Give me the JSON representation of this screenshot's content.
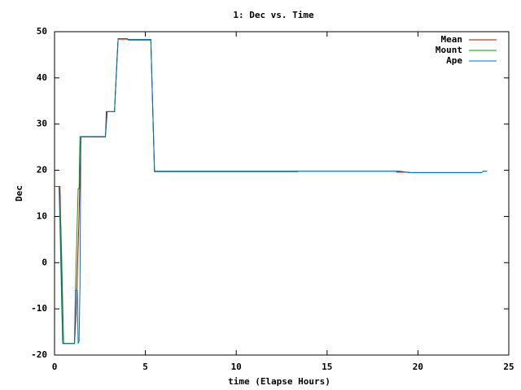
{
  "chart_data": {
    "type": "line",
    "title": "1: Dec vs. Time",
    "x_label": "time (Elapse Hours)",
    "y_label": "Dec",
    "xlim": [
      0,
      25
    ],
    "ylim": [
      -20,
      50
    ],
    "xticks": [
      0,
      5,
      10,
      15,
      20,
      25
    ],
    "yticks": [
      -20,
      -10,
      0,
      10,
      20,
      30,
      40,
      50
    ],
    "grid": false,
    "legend": "top-right",
    "series": [
      {
        "name": "Mean",
        "color": "#cc0000",
        "x": [
          0,
          0.3,
          0.35,
          0.45,
          1.1,
          1.2,
          1.35,
          1.45,
          2.8,
          2.85,
          3.3,
          3.5,
          4.0,
          4.05,
          5.3,
          5.5,
          13.4,
          16,
          18.8,
          19.5
        ],
        "values": [
          16.5,
          16.5,
          5,
          -17.5,
          -17.5,
          -10,
          10,
          27.2,
          27.2,
          32.7,
          32.7,
          48.4,
          48.4,
          48.2,
          48.2,
          19.7,
          19.7,
          null,
          19.6,
          19.6
        ]
      },
      {
        "name": "Mount",
        "color": "#00a000",
        "x": [
          0,
          0.25,
          0.3,
          0.35,
          0.4,
          0.45,
          0.5,
          1.1,
          1.15,
          1.3,
          1.35,
          1.4,
          2.8,
          2.85,
          2.9,
          3.3,
          3.35,
          3.45,
          3.5,
          4.0,
          4.05,
          5.3,
          5.35,
          5.45,
          5.5,
          13.4,
          19,
          19.5,
          23.5,
          23.6,
          23.8
        ],
        "values": [
          16.5,
          16.5,
          11,
          8,
          0,
          -9,
          -17.5,
          -17.5,
          -6,
          16,
          16,
          27.3,
          27.3,
          30,
          32.7,
          32.7,
          37,
          45,
          48.5,
          48.5,
          48.3,
          48.3,
          41,
          27,
          19.8,
          19.8,
          19.8,
          19.5,
          19.5,
          19.8,
          19.8
        ]
      },
      {
        "name": "Ape",
        "color": "#0070c0",
        "x": [
          0,
          0.25,
          0.3,
          0.4,
          0.45,
          1.1,
          1.15,
          1.25,
          1.3,
          1.35,
          1.4,
          1.45,
          2.8,
          2.85,
          2.9,
          3.3,
          3.35,
          3.45,
          3.5,
          4.0,
          4.05,
          5.3,
          5.35,
          5.45,
          5.5,
          13.4,
          19,
          19.5,
          23.5,
          23.6,
          23.8
        ],
        "values": [
          16.5,
          16.5,
          8,
          -10,
          -17.5,
          -17.5,
          -6,
          -6,
          -17.5,
          -17,
          -5,
          27.3,
          27.3,
          30,
          32.7,
          32.7,
          37,
          45,
          48.5,
          48.5,
          48.3,
          48.3,
          41,
          27,
          19.8,
          19.8,
          19.8,
          19.5,
          19.5,
          19.8,
          19.8
        ]
      }
    ]
  }
}
